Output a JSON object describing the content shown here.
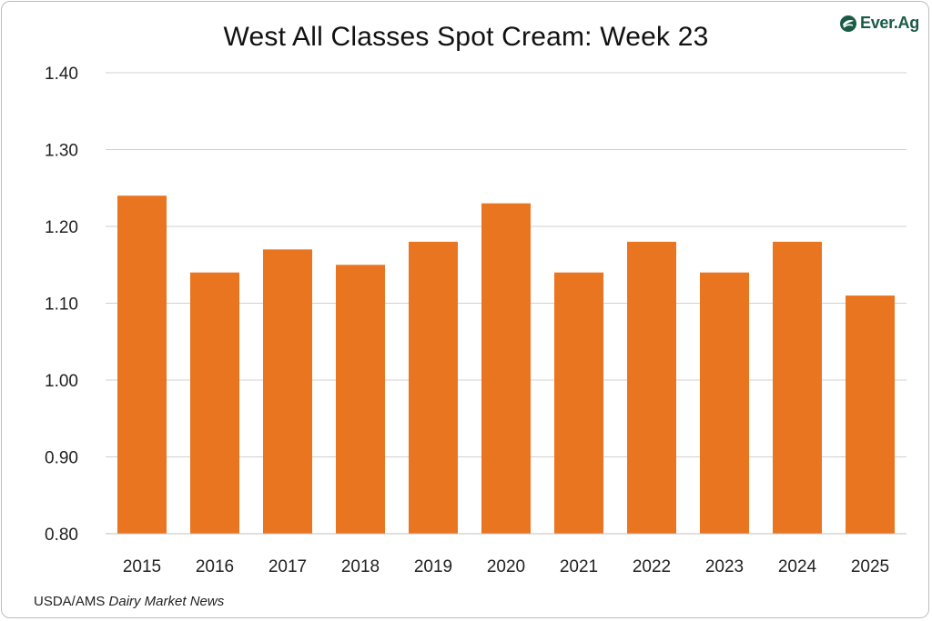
{
  "chart_data": {
    "type": "bar",
    "title": "West All Classes Spot Cream: Week 23",
    "categories": [
      "2015",
      "2016",
      "2017",
      "2018",
      "2019",
      "2020",
      "2021",
      "2022",
      "2023",
      "2024",
      "2025"
    ],
    "values": [
      1.24,
      1.14,
      1.17,
      1.15,
      1.18,
      1.23,
      1.14,
      1.18,
      1.14,
      1.18,
      1.11
    ],
    "ylim": [
      0.8,
      1.4
    ],
    "yticks": [
      "0.80",
      "0.90",
      "1.00",
      "1.10",
      "1.20",
      "1.30",
      "1.40"
    ],
    "grid": true,
    "bar_color": "#EA7520",
    "grid_color": "#d0d0d0"
  },
  "logo": {
    "text": "Ever.Ag",
    "icon": "ever-ag-leaf-icon",
    "color": "#1a5b46"
  },
  "source": {
    "prefix": "USDA/AMS ",
    "italic": "Dairy Market News"
  }
}
